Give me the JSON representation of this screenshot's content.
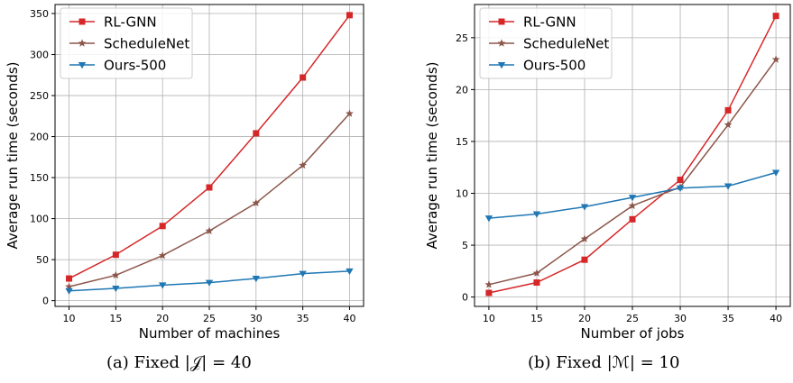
{
  "chart_data": [
    {
      "type": "line",
      "xlabel": "Number of machines",
      "ylabel": "Average run time (seconds)",
      "x": [
        10,
        15,
        20,
        25,
        30,
        35,
        40
      ],
      "xticks": [
        10,
        15,
        20,
        25,
        30,
        35,
        40
      ],
      "yticks": [
        0,
        50,
        100,
        150,
        200,
        250,
        300,
        350
      ],
      "xlim": [
        8.5,
        41.5
      ],
      "ylim": [
        -7,
        361
      ],
      "grid": true,
      "legend_position": "top-left",
      "series": [
        {
          "name": "RL-GNN",
          "color": "#d62728",
          "marker": "square",
          "values": [
            27,
            56,
            91,
            138,
            204,
            272,
            348
          ]
        },
        {
          "name": "ScheduleNet",
          "color": "#8c564b",
          "marker": "star",
          "values": [
            17,
            31,
            55,
            85,
            119,
            165,
            228
          ]
        },
        {
          "name": "Ours-500",
          "color": "#1f77b4",
          "marker": "triangle-down",
          "values": [
            12,
            15,
            19,
            22,
            27,
            33,
            36
          ]
        }
      ],
      "caption": "(a) Fixed |𝒥| = 40"
    },
    {
      "type": "line",
      "xlabel": "Number of jobs",
      "ylabel": "Average run time (seconds)",
      "x": [
        10,
        15,
        20,
        25,
        30,
        35,
        40
      ],
      "xticks": [
        10,
        15,
        20,
        25,
        30,
        35,
        40
      ],
      "yticks": [
        0,
        5,
        10,
        15,
        20,
        25
      ],
      "xlim": [
        8.5,
        41.5
      ],
      "ylim": [
        -0.9,
        28.2
      ],
      "grid": true,
      "legend_position": "top-left",
      "series": [
        {
          "name": "RL-GNN",
          "color": "#d62728",
          "marker": "square",
          "values": [
            0.4,
            1.4,
            3.6,
            7.5,
            11.3,
            18.0,
            27.1
          ]
        },
        {
          "name": "ScheduleNet",
          "color": "#8c564b",
          "marker": "star",
          "values": [
            1.2,
            2.3,
            5.6,
            8.8,
            10.6,
            16.6,
            22.9
          ]
        },
        {
          "name": "Ours-500",
          "color": "#1f77b4",
          "marker": "triangle-down",
          "values": [
            7.6,
            8.0,
            8.7,
            9.6,
            10.5,
            10.7,
            12.0
          ]
        }
      ],
      "caption": "(b) Fixed |ℳ| = 10"
    }
  ]
}
